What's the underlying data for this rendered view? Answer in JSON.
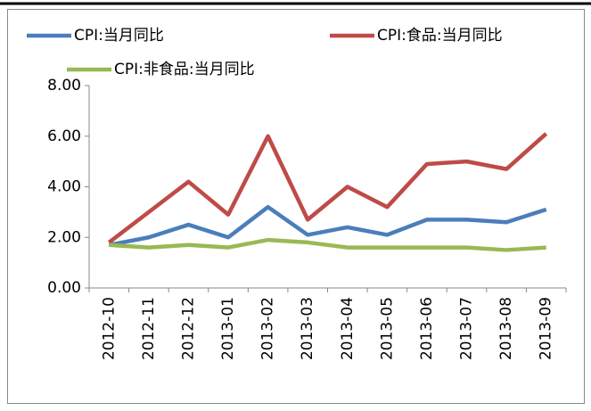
{
  "chart_data": {
    "type": "line",
    "categories": [
      "2012-10",
      "2012-11",
      "2012-12",
      "2013-01",
      "2013-02",
      "2013-03",
      "2013-04",
      "2013-05",
      "2013-06",
      "2013-07",
      "2013-08",
      "2013-09"
    ],
    "series": [
      {
        "name": "CPI:当月同比",
        "color": "#4a7ebb",
        "values": [
          1.7,
          2.0,
          2.5,
          2.0,
          3.2,
          2.1,
          2.4,
          2.1,
          2.7,
          2.7,
          2.6,
          3.1
        ]
      },
      {
        "name": "CPI:食品:当月同比",
        "color": "#be4b48",
        "values": [
          1.8,
          3.0,
          4.2,
          2.9,
          6.0,
          2.7,
          4.0,
          3.2,
          4.9,
          5.0,
          4.7,
          6.1
        ]
      },
      {
        "name": "CPI:非食品:当月同比",
        "color": "#98b954",
        "values": [
          1.7,
          1.6,
          1.7,
          1.6,
          1.9,
          1.8,
          1.6,
          1.6,
          1.6,
          1.6,
          1.5,
          1.6
        ]
      }
    ],
    "ylim": [
      0,
      8
    ],
    "yticks": [
      {
        "value": 0,
        "label": "0.00"
      },
      {
        "value": 2,
        "label": "2.00"
      },
      {
        "value": 4,
        "label": "4.00"
      },
      {
        "value": 6,
        "label": "6.00"
      },
      {
        "value": 8,
        "label": "8.00"
      }
    ],
    "legend": "top"
  }
}
